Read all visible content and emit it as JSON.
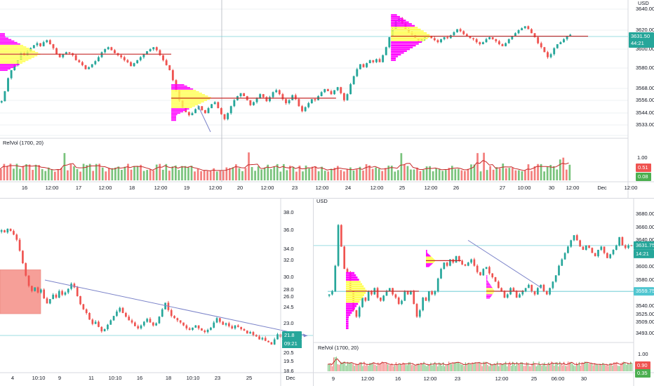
{
  "theme": {
    "up_color": "#26a69a",
    "down_color": "#ef5350",
    "candle_dark": "#26a69a",
    "poc_color": "#c62828",
    "profile_value_area": "#ffff55",
    "profile_outside": "#ff00ff",
    "price_label_bg": "#26a69a",
    "volume_up": "#4caf50",
    "volume_down": "#ef5350",
    "relvol_line": "#c62828",
    "trendline": "#7b83c9",
    "hline": "#7ad0d8",
    "rect_fill": "#f47f76",
    "grid": "#eef0f3",
    "axis_text": "#131722"
  },
  "top": {
    "currency": "USD",
    "price_ticks": [
      "3640.00",
      "3620.00",
      "3600.00",
      "3580.00",
      "3568.00",
      "3556.00",
      "3544.00",
      "3533.00"
    ],
    "last_price": "3631.50",
    "countdown": "44:21",
    "second_label": "3620.00",
    "indicator_title": "RelVol (1700, 20)",
    "indicator_ticks": [
      "1.00",
      "0.50"
    ],
    "indicator_value_1": "0.51",
    "indicator_value_2": "0.08",
    "time_labels": [
      "16",
      "12:00",
      "17",
      "12:00",
      "18",
      "12:00",
      "19",
      "12:00",
      "20",
      "12:00",
      "23",
      "12:00",
      "24",
      "12:00",
      "25",
      "12:00",
      "26",
      "27",
      "10:00",
      "30",
      "12:00",
      "Dec",
      "12:00"
    ]
  },
  "bottom_left": {
    "price_ticks": [
      "38.0",
      "36.0",
      "34.0",
      "32.0",
      "30.0",
      "28.0",
      "26.0",
      "24.5",
      "23.0",
      "21.8",
      "20.5",
      "19.5",
      "18.6"
    ],
    "last_price": "21.8",
    "countdown": "09:21",
    "time_labels": [
      "4",
      "10:10",
      "9",
      "11",
      "10:10",
      "16",
      "18",
      "10:10",
      "23",
      "25",
      "Dec"
    ]
  },
  "bottom_right": {
    "currency": "USD",
    "price_ticks": [
      "3680.00",
      "3660.00",
      "3640.00",
      "3620.00",
      "3600.00",
      "3580.00",
      "3560.00",
      "3540.00",
      "3525.00",
      "3509.00",
      "3493.00"
    ],
    "last_price": "3631.75",
    "countdown": "14:21",
    "hline_price": "3559.75",
    "indicator_title": "RelVol (1700, 20)",
    "indicator_ticks": [
      "1.00"
    ],
    "indicator_value_1": "0.90",
    "indicator_value_2": "0.35",
    "time_labels": [
      "9",
      "12:00",
      "16",
      "12:00",
      "23",
      "12:00",
      "25",
      "06:00",
      "30"
    ]
  },
  "chart_data": [
    {
      "type": "candlestick",
      "title": "",
      "ylabel": "USD",
      "ylim": [
        3530,
        3662
      ],
      "x_range": [
        "16",
        "12:00 (Dec)"
      ],
      "close_series": [
        3565,
        3575,
        3588,
        3596,
        3601,
        3606,
        3614,
        3611,
        3615,
        3618,
        3621,
        3623,
        3620,
        3624,
        3626,
        3622,
        3618,
        3612,
        3609,
        3612,
        3614,
        3613,
        3611,
        3606,
        3604,
        3601,
        3597,
        3599,
        3602,
        3605,
        3609,
        3614,
        3617,
        3619,
        3616,
        3613,
        3611,
        3609,
        3606,
        3604,
        3600,
        3603,
        3606,
        3609,
        3612,
        3615,
        3617,
        3619,
        3616,
        3611,
        3606,
        3601,
        3596,
        3586,
        3576,
        3566,
        3559,
        3554,
        3551,
        3553,
        3557,
        3560,
        3556,
        3553,
        3558,
        3562,
        3564,
        3558,
        3552,
        3547,
        3553,
        3560,
        3566,
        3570,
        3573,
        3570,
        3566,
        3561,
        3564,
        3568,
        3572,
        3569,
        3565,
        3569,
        3574,
        3576,
        3572,
        3567,
        3563,
        3566,
        3571,
        3567,
        3560,
        3555,
        3559,
        3563,
        3567,
        3566,
        3570,
        3574,
        3577,
        3575,
        3572,
        3576,
        3579,
        3573,
        3566,
        3572,
        3582,
        3590,
        3597,
        3602,
        3599,
        3603,
        3606,
        3604,
        3607,
        3604,
        3611,
        3619,
        3629,
        3637,
        3645,
        3648,
        3643,
        3637,
        3634,
        3631,
        3628,
        3625,
        3627,
        3629,
        3630,
        3628,
        3626,
        3624,
        3627,
        3629,
        3628,
        3631,
        3634,
        3637,
        3635,
        3632,
        3630,
        3628,
        3627,
        3624,
        3622,
        3624,
        3627,
        3629,
        3627,
        3625,
        3622,
        3620,
        3623,
        3627,
        3630,
        3633,
        3636,
        3638,
        3640,
        3637,
        3633,
        3629,
        3623,
        3619,
        3614,
        3609,
        3612,
        3618,
        3622,
        3624,
        3627,
        3630,
        3631.5
      ],
      "value_areas": [
        {
          "from_index": 0,
          "to_index": 53,
          "poc": 3612,
          "vah": 3622,
          "val": 3603,
          "low": 3595,
          "high": 3633
        },
        {
          "from_index": 53,
          "to_index": 104,
          "poc": 3568,
          "vah": 3576,
          "val": 3558,
          "low": 3545,
          "high": 3582
        },
        {
          "from_index": 121,
          "to_index": 182,
          "poc": 3630,
          "vah": 3640,
          "val": 3625,
          "low": 3605,
          "high": 3652
        }
      ],
      "indicator": {
        "name": "RelVol (1700, 20)",
        "ylim": [
          0,
          1.4
        ],
        "last": 0.51
      }
    },
    {
      "type": "candlestick",
      "title": "",
      "ylim": [
        18.2,
        38.8
      ],
      "close_series": [
        36.4,
        36.1,
        36.6,
        36.3,
        35.8,
        35.1,
        33.6,
        31.9,
        30.2,
        28.8,
        28.1,
        28.6,
        27.9,
        28.3,
        27.1,
        26.4,
        27.0,
        27.6,
        27.2,
        28.1,
        27.6,
        27.9,
        28.4,
        29.1,
        28.6,
        27.4,
        26.3,
        25.6,
        25.1,
        24.2,
        23.6,
        23.9,
        23.2,
        22.6,
        22.9,
        23.5,
        24.1,
        24.7,
        25.3,
        25.8,
        25.1,
        24.6,
        24.1,
        23.8,
        23.3,
        23.0,
        23.4,
        23.9,
        24.3,
        23.8,
        23.4,
        23.7,
        24.6,
        25.6,
        26.5,
        25.5,
        24.7,
        24.4,
        24.1,
        23.8,
        23.4,
        23.0,
        22.8,
        23.1,
        23.4,
        23.0,
        22.7,
        22.5,
        22.8,
        23.1,
        23.8,
        24.4,
        23.9,
        23.5,
        23.7,
        23.3,
        23.0,
        23.4,
        23.2,
        22.9,
        22.7,
        22.3,
        22.5,
        22.1,
        21.9,
        21.5,
        21.7,
        21.3,
        21.1,
        20.8,
        21.5,
        22.2,
        21.8
      ],
      "shapes": [
        {
          "kind": "rectangle",
          "price_top": 31.0,
          "price_bottom": 25.0
        },
        {
          "kind": "trendline",
          "from_price": 29.6,
          "to_price": 22.0
        }
      ]
    },
    {
      "type": "candlestick",
      "title": "",
      "ylabel": "USD",
      "ylim": [
        3485,
        3690
      ],
      "close_series": [
        3555,
        3560,
        3600,
        3664,
        3630,
        3595,
        3590,
        3560,
        3530,
        3520,
        3535,
        3550,
        3545,
        3560,
        3555,
        3565,
        3550,
        3545,
        3553,
        3560,
        3565,
        3555,
        3550,
        3540,
        3545,
        3560,
        3555,
        3560,
        3540,
        3520,
        3530,
        3550,
        3545,
        3560,
        3555,
        3560,
        3580,
        3595,
        3605,
        3600,
        3610,
        3605,
        3615,
        3608,
        3602,
        3600,
        3605,
        3610,
        3600,
        3590,
        3585,
        3595,
        3598,
        3588,
        3582,
        3575,
        3565,
        3560,
        3550,
        3555,
        3565,
        3560,
        3550,
        3555,
        3560,
        3565,
        3570,
        3560,
        3555,
        3565,
        3570,
        3560,
        3555,
        3565,
        3575,
        3585,
        3600,
        3610,
        3620,
        3630,
        3640,
        3648,
        3640,
        3630,
        3625,
        3632,
        3628,
        3620,
        3615,
        3625,
        3630,
        3620,
        3612,
        3618,
        3625,
        3632,
        3645,
        3632,
        3628,
        3632,
        3631.75
      ],
      "value_areas": [
        {
          "poc": 3560,
          "vah": 3575,
          "val": 3540,
          "low": 3500,
          "high": 3590
        },
        {
          "poc": 3608,
          "vah": 3615,
          "val": 3604,
          "low": 3598,
          "high": 3625
        },
        {
          "poc": 3560,
          "vah": 3565,
          "val": 3555,
          "low": 3548,
          "high": 3585
        }
      ],
      "hline": 3559.75,
      "trendline": {
        "from_price": 3640,
        "to_price": 3565
      },
      "indicator": {
        "name": "RelVol (1700, 20)",
        "ylim": [
          0,
          2.0
        ],
        "last": 0.9
      }
    }
  ]
}
